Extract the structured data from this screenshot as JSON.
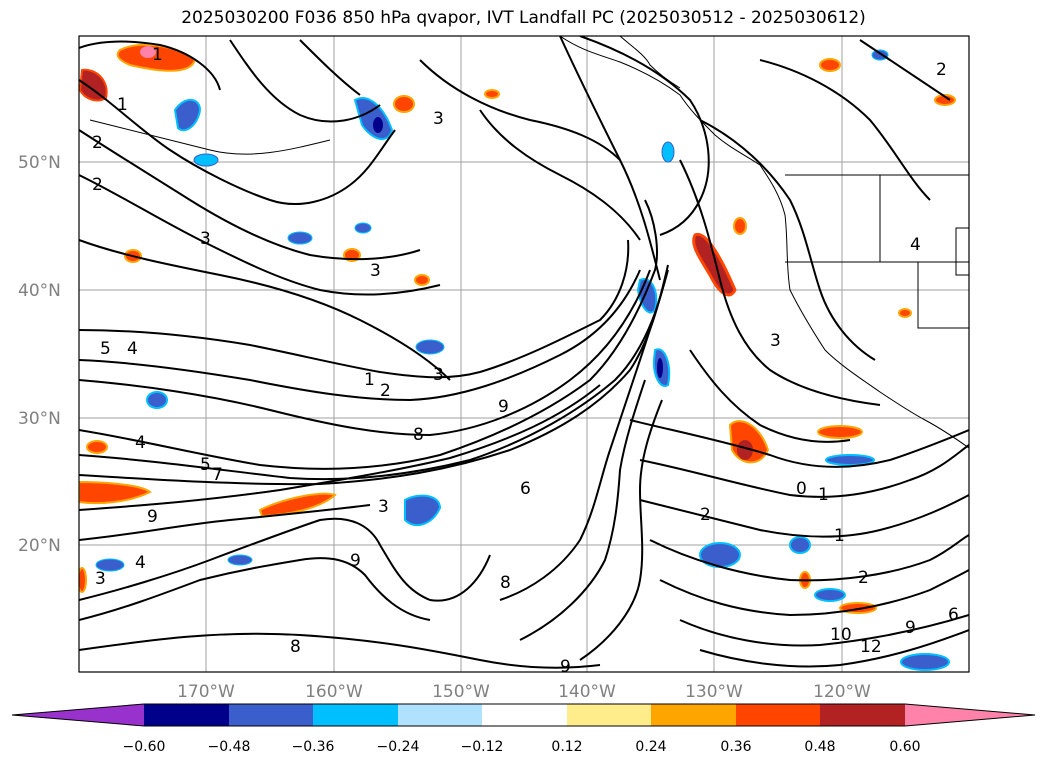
{
  "title": "2025030200 F036 850 hPa qvapor, IVT Landfall PC (2025030512 - 2025030612)",
  "lat_ticks": [
    "20°N",
    "30°N",
    "40°N",
    "50°N"
  ],
  "lon_ticks": [
    "170°W",
    "160°W",
    "150°W",
    "140°W",
    "130°W",
    "120°W"
  ],
  "contour_labels": [
    "1",
    "2",
    "2",
    "3",
    "3",
    "1",
    "2",
    "3",
    "5",
    "4",
    "5",
    "7",
    "9",
    "8",
    "3",
    "9",
    "9",
    "8",
    "6",
    "0",
    "1",
    "2",
    "1",
    "2",
    "3",
    "4",
    "1",
    "6",
    "9",
    "12",
    "10",
    "2",
    "8",
    "9",
    "3",
    "4",
    "3",
    "4"
  ],
  "colorbar": {
    "ticks": [
      "−0.60",
      "−0.48",
      "−0.36",
      "−0.24",
      "−0.12",
      "0.12",
      "0.24",
      "0.36",
      "0.48",
      "0.60"
    ],
    "colors": [
      "#9932cc",
      "#00008b",
      "#3a5fcd",
      "#00bfff",
      "#b0e2ff",
      "#ffffff",
      "#ffec8b",
      "#ffa500",
      "#ff4500",
      "#b22222",
      "#ff82ab"
    ]
  }
}
